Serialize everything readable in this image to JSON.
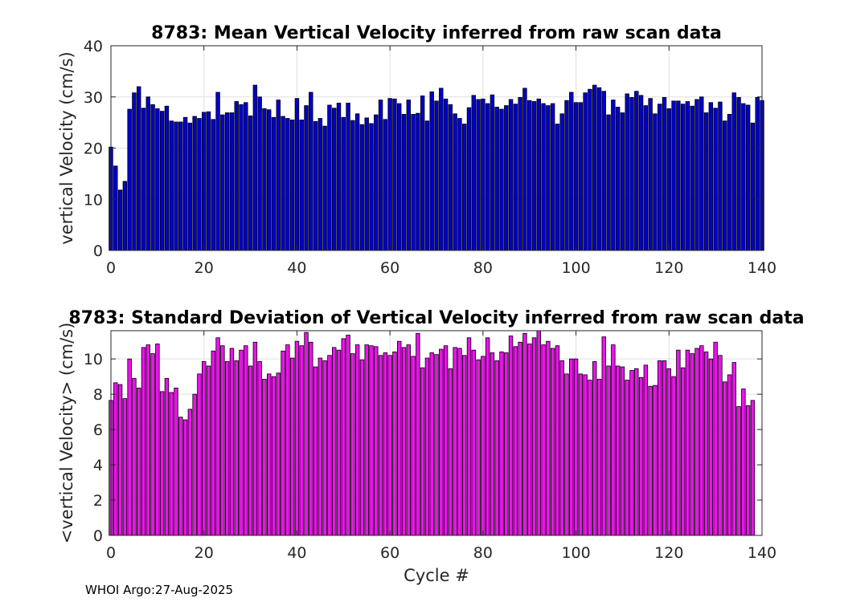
{
  "footer": "WHOI Argo:27-Aug-2025",
  "chart_data": [
    {
      "type": "bar",
      "title": "8783: Mean Vertical Velocity inferred from raw scan data",
      "xlabel": "",
      "ylabel": "vertical Velocity (cm/s)",
      "xlim": [
        0,
        140
      ],
      "ylim": [
        0,
        40
      ],
      "xticks": [
        0,
        20,
        40,
        60,
        80,
        100,
        120,
        140
      ],
      "yticks": [
        0,
        10,
        20,
        30,
        40
      ],
      "grid": true,
      "color": "#0000cc",
      "x_start": 0,
      "values": [
        20.2,
        16.5,
        11.8,
        13.5,
        27.6,
        30.8,
        32.0,
        27.8,
        30.0,
        28.5,
        27.7,
        27.2,
        28.2,
        25.3,
        25.1,
        25.1,
        26.0,
        24.9,
        26.2,
        25.8,
        27.0,
        27.1,
        25.6,
        30.9,
        26.5,
        26.9,
        26.9,
        29.1,
        28.5,
        28.9,
        26.3,
        32.3,
        30.0,
        27.7,
        27.5,
        26.0,
        29.4,
        26.2,
        25.8,
        25.5,
        29.7,
        25.5,
        28.3,
        30.9,
        25.2,
        25.8,
        24.3,
        28.4,
        27.8,
        28.8,
        26.0,
        28.8,
        25.4,
        26.7,
        24.6,
        25.9,
        24.8,
        26.5,
        29.4,
        25.6,
        29.7,
        29.6,
        28.7,
        26.6,
        29.4,
        26.6,
        26.8,
        30.2,
        25.3,
        31.0,
        29.2,
        31.7,
        29.6,
        28.5,
        26.7,
        25.8,
        24.7,
        27.9,
        30.3,
        29.5,
        29.6,
        28.7,
        30.4,
        28.0,
        27.6,
        28.3,
        29.5,
        28.6,
        29.9,
        31.7,
        29.3,
        29.1,
        29.6,
        28.7,
        28.3,
        28.7,
        24.7,
        26.7,
        29.3,
        30.9,
        28.9,
        28.9,
        30.8,
        31.5,
        32.3,
        31.8,
        31.1,
        26.5,
        29.4,
        28.0,
        26.9,
        30.6,
        29.9,
        31.1,
        30.3,
        28.3,
        29.7,
        26.7,
        28.6,
        29.9,
        27.7,
        29.2,
        29.2,
        28.6,
        29.1,
        28.2,
        29.5,
        30.0,
        26.9,
        28.9,
        27.8,
        29.0,
        25.3,
        26.6,
        30.8,
        29.9,
        28.7,
        28.4,
        24.9,
        29.9,
        29.3
      ]
    },
    {
      "type": "bar",
      "title": "8783: Standard Deviation of Vertical Velocity inferred from raw scan data",
      "xlabel": "Cycle #",
      "ylabel": "<vertical Velocity> (cm/s)",
      "xlim": [
        0,
        140
      ],
      "ylim": [
        0,
        11.6
      ],
      "xticks": [
        0,
        20,
        40,
        60,
        80,
        100,
        120,
        140
      ],
      "yticks": [
        0,
        2,
        4,
        6,
        8,
        10
      ],
      "grid": true,
      "color": "#ee11ee",
      "x_start": 0,
      "values": [
        7.65,
        8.65,
        8.55,
        7.75,
        10.0,
        8.9,
        8.35,
        10.65,
        10.8,
        10.3,
        10.85,
        8.15,
        8.9,
        8.1,
        8.35,
        6.7,
        6.55,
        7.15,
        8.0,
        9.15,
        9.85,
        9.6,
        10.45,
        11.2,
        10.75,
        9.85,
        10.6,
        9.9,
        10.5,
        10.75,
        9.6,
        10.95,
        9.85,
        8.85,
        9.15,
        9.0,
        9.2,
        10.45,
        10.8,
        10.05,
        11.0,
        10.75,
        11.5,
        10.95,
        9.55,
        10.05,
        9.9,
        10.2,
        10.65,
        10.5,
        11.15,
        11.35,
        10.3,
        10.8,
        9.95,
        10.8,
        10.75,
        10.7,
        10.2,
        10.35,
        10.2,
        10.4,
        11.0,
        10.65,
        10.8,
        10.15,
        11.45,
        9.5,
        10.05,
        10.35,
        10.25,
        10.55,
        10.75,
        9.45,
        10.65,
        10.6,
        10.2,
        11.2,
        10.5,
        9.95,
        10.15,
        11.2,
        10.35,
        9.9,
        10.4,
        10.35,
        11.3,
        10.7,
        10.95,
        11.45,
        10.85,
        11.2,
        11.6,
        10.8,
        11.0,
        10.6,
        10.75,
        9.9,
        9.15,
        10.0,
        10.0,
        9.15,
        9.1,
        8.8,
        9.85,
        8.85,
        11.25,
        9.6,
        10.8,
        9.6,
        9.55,
        8.8,
        9.35,
        9.45,
        8.95,
        9.65,
        8.45,
        8.5,
        9.9,
        9.9,
        9.45,
        9.0,
        10.5,
        9.5,
        10.5,
        10.3,
        10.6,
        10.75,
        10.4,
        10.0,
        10.95,
        10.2,
        8.7,
        9.1,
        9.8,
        7.3,
        8.3,
        7.35,
        7.65
      ]
    }
  ]
}
